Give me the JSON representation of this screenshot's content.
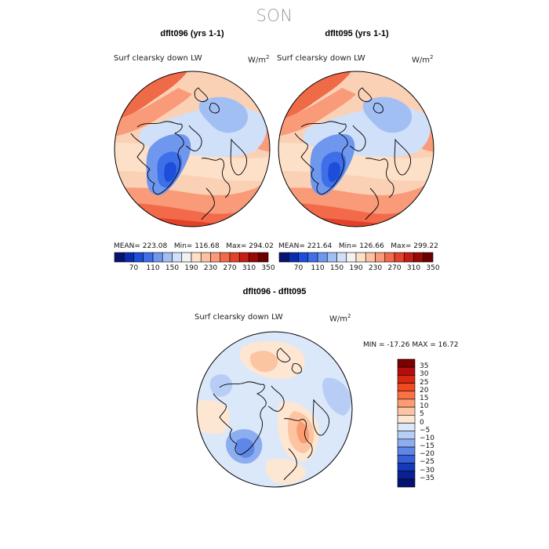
{
  "page": {
    "season": "SON"
  },
  "panels": [
    {
      "title": "dflt096 (yrs 1-1)",
      "variable": "Surf clearsky down LW",
      "units_base": "W/m",
      "units_exp": "2",
      "mean_text": "MEAN= 223.08",
      "min_text": "Min= 116.68",
      "max_text": "Max= 294.02"
    },
    {
      "title": "dflt095 (yrs 1-1)",
      "variable": "Surf clearsky down LW",
      "units_base": "W/m",
      "units_exp": "2",
      "mean_text": "MEAN= 221.64",
      "min_text": "Min= 126.66",
      "max_text": "Max= 299.22"
    }
  ],
  "diff": {
    "title": "dflt096 - dflt095",
    "variable": "Surf clearsky down LW",
    "units_base": "W/m",
    "units_exp": "2",
    "min_text": "MIN = -17.26",
    "max_text": "MAX =  16.72"
  },
  "chart_data": [
    {
      "type": "heatmap",
      "projection": "north-polar-stereographic",
      "title": "dflt096 (yrs 1-1)",
      "variable": "Surf clearsky down LW",
      "units": "W/m2",
      "mean": 223.08,
      "min": 116.68,
      "max": 294.02,
      "colorbar_ticks": [
        "70",
        "110",
        "150",
        "190",
        "230",
        "270",
        "310",
        "350"
      ],
      "colorbar_colors": [
        "#08136e",
        "#0a2db0",
        "#1c4ddb",
        "#3f6fe8",
        "#6f97ee",
        "#a2bff3",
        "#cfe0f8",
        "#f2f2f2",
        "#fde0c8",
        "#fcc1a1",
        "#f99a79",
        "#f26a4a",
        "#e2412a",
        "#c41d12",
        "#9a0a05",
        "#6b0000"
      ]
    },
    {
      "type": "heatmap",
      "projection": "north-polar-stereographic",
      "title": "dflt095 (yrs 1-1)",
      "variable": "Surf clearsky down LW",
      "units": "W/m2",
      "mean": 221.64,
      "min": 126.66,
      "max": 299.22,
      "colorbar_ticks": [
        "70",
        "110",
        "150",
        "190",
        "230",
        "270",
        "310",
        "350"
      ],
      "colorbar_colors": [
        "#08136e",
        "#0a2db0",
        "#1c4ddb",
        "#3f6fe8",
        "#6f97ee",
        "#a2bff3",
        "#cfe0f8",
        "#f2f2f2",
        "#fde0c8",
        "#fcc1a1",
        "#f99a79",
        "#f26a4a",
        "#e2412a",
        "#c41d12",
        "#9a0a05",
        "#6b0000"
      ]
    },
    {
      "type": "heatmap",
      "projection": "north-polar-stereographic",
      "title": "dflt096 - dflt095",
      "variable": "Surf clearsky down LW",
      "units": "W/m2",
      "min": -17.26,
      "max": 16.72,
      "colorbar_ticks": [
        "35",
        "30",
        "25",
        "20",
        "15",
        "10",
        "5",
        "0",
        "−5",
        "−10",
        "−15",
        "−20",
        "−25",
        "−30",
        "−35"
      ],
      "colorbar_colors": [
        "#7a0000",
        "#b30d0d",
        "#d8280f",
        "#ef4a22",
        "#f87246",
        "#fb9c72",
        "#fdc4a2",
        "#fde6d2",
        "#dbe8fa",
        "#b7cdf6",
        "#8cadf0",
        "#5f87e6",
        "#3560d8",
        "#1539b8",
        "#0a2094",
        "#061270"
      ]
    }
  ]
}
